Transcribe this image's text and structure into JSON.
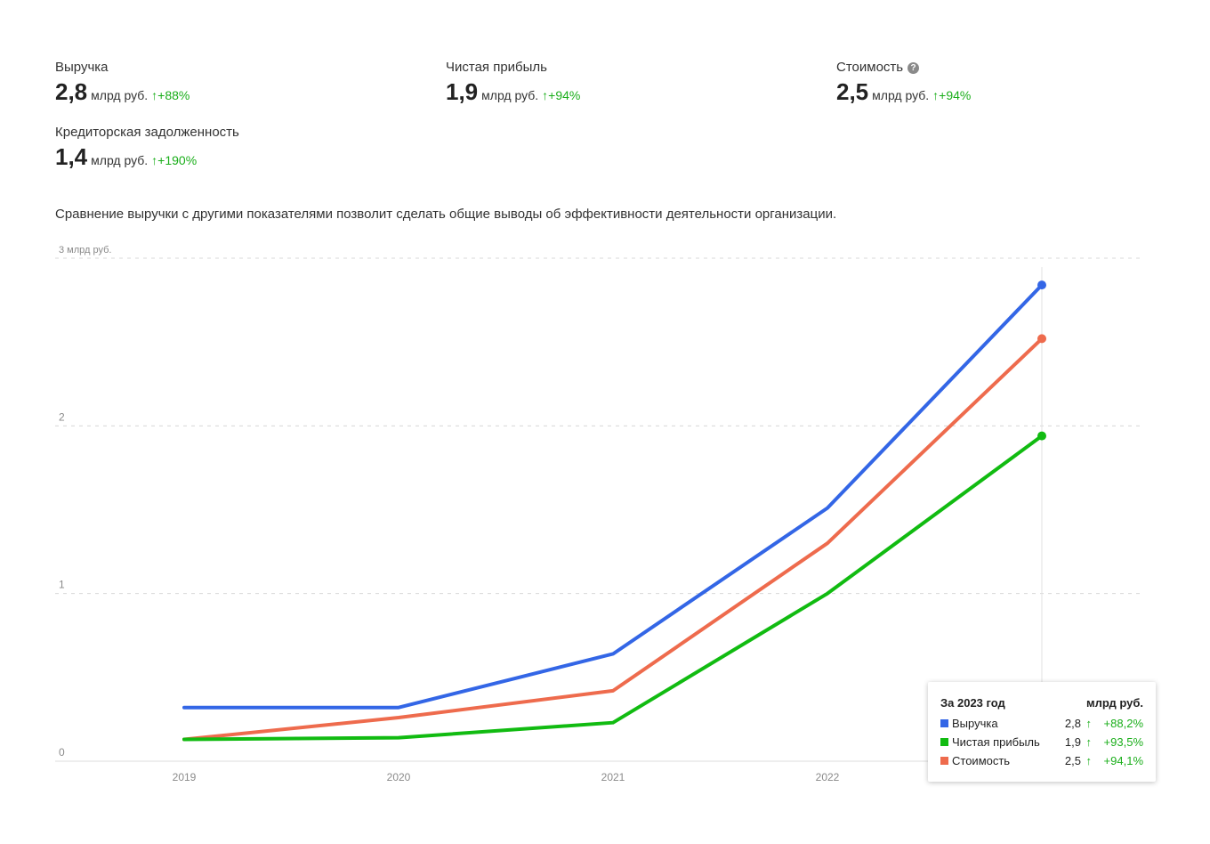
{
  "metrics": [
    {
      "label": "Выручка",
      "value": "2,8",
      "unit": "млрд руб.",
      "arrow": "↑",
      "delta": "+88%"
    },
    {
      "label": "Чистая прибыль",
      "value": "1,9",
      "unit": "млрд руб.",
      "arrow": "↑",
      "delta": "+94%"
    },
    {
      "label": "Стоимость",
      "value": "2,5",
      "unit": "млрд руб.",
      "arrow": "↑",
      "delta": "+94%",
      "help_icon": "?"
    },
    {
      "label": "Кредиторская задолженность",
      "value": "1,4",
      "unit": "млрд руб.",
      "arrow": "↑",
      "delta": "+190%"
    }
  ],
  "description": "Сравнение выручки с другими показателями позволит сделать общие выводы об эффективности деятельности организации.",
  "tooltip": {
    "title": "За 2023 год",
    "unit": "млрд руб.",
    "rows": [
      {
        "name": "Выручка",
        "value": "2,8",
        "arrow": "↑",
        "pct": "+88,2%",
        "color": "#3366e6"
      },
      {
        "name": "Чистая прибыль",
        "value": "1,9",
        "arrow": "↑",
        "pct": "+93,5%",
        "color": "#11bb11"
      },
      {
        "name": "Стоимость",
        "value": "2,5",
        "arrow": "↑",
        "pct": "+94,1%",
        "color": "#ee6b4d"
      }
    ]
  },
  "chart_data": {
    "type": "line",
    "x": [
      "2019",
      "2020",
      "2021",
      "2022",
      "2023"
    ],
    "xtick_labels": [
      "2019",
      "2020",
      "2021",
      "2022"
    ],
    "ylim": [
      0,
      3
    ],
    "yticks": [
      {
        "value": 0,
        "label": "0"
      },
      {
        "value": 1,
        "label": "1"
      },
      {
        "value": 2,
        "label": "2"
      },
      {
        "value": 3,
        "label": "3 млрд руб."
      }
    ],
    "series": [
      {
        "name": "Выручка",
        "color": "#3366e6",
        "values": [
          0.32,
          0.32,
          0.64,
          1.51,
          2.84
        ]
      },
      {
        "name": "Стоимость",
        "color": "#ee6b4d",
        "values": [
          0.13,
          0.26,
          0.42,
          1.3,
          2.52
        ]
      },
      {
        "name": "Чистая прибыль",
        "color": "#11bb11",
        "values": [
          0.13,
          0.14,
          0.23,
          1.0,
          1.94
        ]
      }
    ],
    "highlight_x": "2023",
    "grid": true
  }
}
